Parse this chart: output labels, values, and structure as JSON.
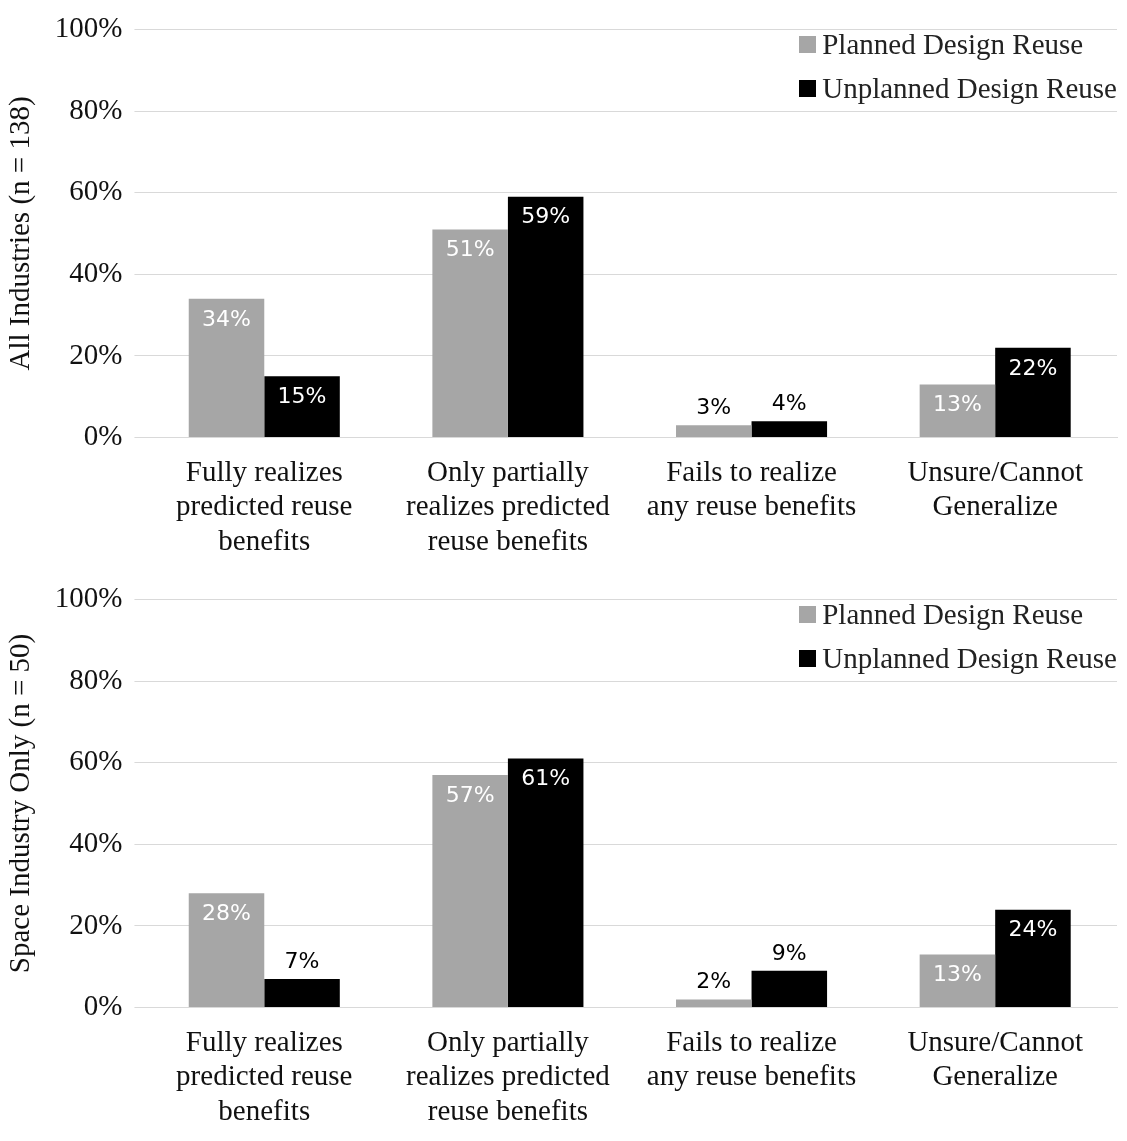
{
  "chart_data": [
    {
      "type": "bar",
      "ylabel": "All Industries (n = 138)",
      "categories": [
        "Fully realizes predicted reuse benefits",
        "Only partially realizes predicted reuse benefits",
        "Fails to realize any reuse benefits",
        "Unsure/Cannot Generalize"
      ],
      "series": [
        {
          "name": "Planned Design Reuse",
          "color": "#a6a6a6",
          "values": [
            34,
            51,
            3,
            13
          ],
          "value_labels": [
            "34%",
            "51%",
            "3%",
            "13%"
          ]
        },
        {
          "name": "Unplanned Design Reuse",
          "color": "#000000",
          "values": [
            15,
            59,
            4,
            22
          ],
          "value_labels": [
            "15%",
            "59%",
            "4%",
            "22%"
          ]
        }
      ],
      "ylim": [
        0,
        100
      ],
      "yticks": [
        {
          "value": 0,
          "label": "0%"
        },
        {
          "value": 20,
          "label": "20%"
        },
        {
          "value": 40,
          "label": "40%"
        },
        {
          "value": 60,
          "label": "60%"
        },
        {
          "value": 80,
          "label": "80%"
        },
        {
          "value": 100,
          "label": "100%"
        }
      ],
      "grid": "y",
      "legend": "top right"
    },
    {
      "type": "bar",
      "ylabel": "Space Industry Only (n = 50)",
      "categories": [
        "Fully realizes predicted reuse benefits",
        "Only partially realizes predicted reuse benefits",
        "Fails to realize any reuse benefits",
        "Unsure/Cannot Generalize"
      ],
      "series": [
        {
          "name": "Planned Design Reuse",
          "color": "#a6a6a6",
          "values": [
            28,
            57,
            2,
            13
          ],
          "value_labels": [
            "28%",
            "57%",
            "2%",
            "13%"
          ]
        },
        {
          "name": "Unplanned Design Reuse",
          "color": "#000000",
          "values": [
            7,
            61,
            9,
            24
          ],
          "value_labels": [
            "7%",
            "61%",
            "9%",
            "24%"
          ]
        }
      ],
      "ylim": [
        0,
        100
      ],
      "yticks": [
        {
          "value": 0,
          "label": "0%"
        },
        {
          "value": 20,
          "label": "20%"
        },
        {
          "value": 40,
          "label": "40%"
        },
        {
          "value": 60,
          "label": "60%"
        },
        {
          "value": 80,
          "label": "80%"
        },
        {
          "value": 100,
          "label": "100%"
        }
      ],
      "grid": "y",
      "legend": "top right"
    }
  ]
}
